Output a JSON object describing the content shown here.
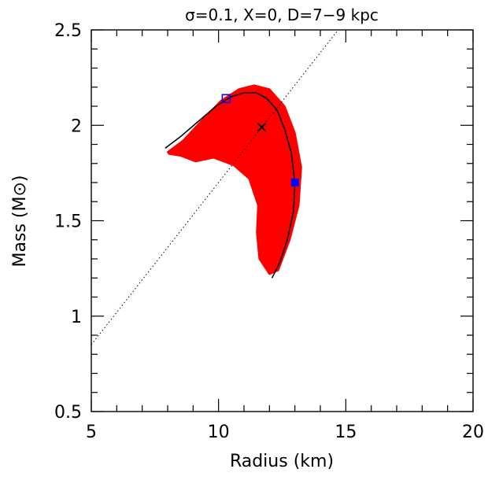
{
  "chart_data": {
    "type": "scatter",
    "title": "σ=0.1, X=0, D=7−9 kpc",
    "xlabel": "Radius (km)",
    "ylabel": "Mass (M⊙)",
    "xlim": [
      5,
      20
    ],
    "ylim": [
      0.5,
      2.5
    ],
    "x_ticks": [
      "5",
      "10",
      "15",
      "20"
    ],
    "y_ticks": [
      "0.5",
      "1",
      "1.5",
      "2",
      "2.5"
    ],
    "grid": false,
    "colors": {
      "region": "#ff0000",
      "curve": "#000000",
      "markers": "#0000ff",
      "dotted_line": "#000000"
    },
    "confidence_region": [
      [
        8.0,
        1.86
      ],
      [
        8.6,
        1.92
      ],
      [
        9.3,
        2.02
      ],
      [
        10.1,
        2.13
      ],
      [
        10.8,
        2.19
      ],
      [
        11.4,
        2.21
      ],
      [
        12.0,
        2.19
      ],
      [
        12.6,
        2.1
      ],
      [
        13.0,
        1.96
      ],
      [
        13.25,
        1.78
      ],
      [
        13.15,
        1.58
      ],
      [
        12.8,
        1.4
      ],
      [
        12.35,
        1.24
      ],
      [
        12.0,
        1.22
      ],
      [
        11.6,
        1.3
      ],
      [
        11.5,
        1.44
      ],
      [
        11.55,
        1.58
      ],
      [
        11.2,
        1.72
      ],
      [
        10.6,
        1.79
      ],
      [
        9.8,
        1.83
      ],
      [
        9.1,
        1.81
      ],
      [
        8.5,
        1.84
      ],
      [
        8.05,
        1.85
      ]
    ],
    "mr_curve": [
      [
        7.9,
        1.88
      ],
      [
        8.5,
        1.94
      ],
      [
        9.2,
        2.02
      ],
      [
        9.9,
        2.1
      ],
      [
        10.5,
        2.15
      ],
      [
        11.0,
        2.17
      ],
      [
        11.5,
        2.17
      ],
      [
        11.9,
        2.14
      ],
      [
        12.3,
        2.08
      ],
      [
        12.6,
        1.98
      ],
      [
        12.85,
        1.86
      ],
      [
        13.0,
        1.7
      ],
      [
        12.95,
        1.55
      ],
      [
        12.7,
        1.4
      ],
      [
        12.4,
        1.28
      ],
      [
        12.1,
        1.2
      ]
    ],
    "dotted_line": [
      [
        5,
        0.85
      ],
      [
        14.7,
        2.5
      ]
    ],
    "best_fit": {
      "x": 11.7,
      "y": 1.99
    },
    "open_square": {
      "x": 10.3,
      "y": 2.14
    },
    "filled_square": {
      "x": 13.0,
      "y": 1.7
    }
  }
}
